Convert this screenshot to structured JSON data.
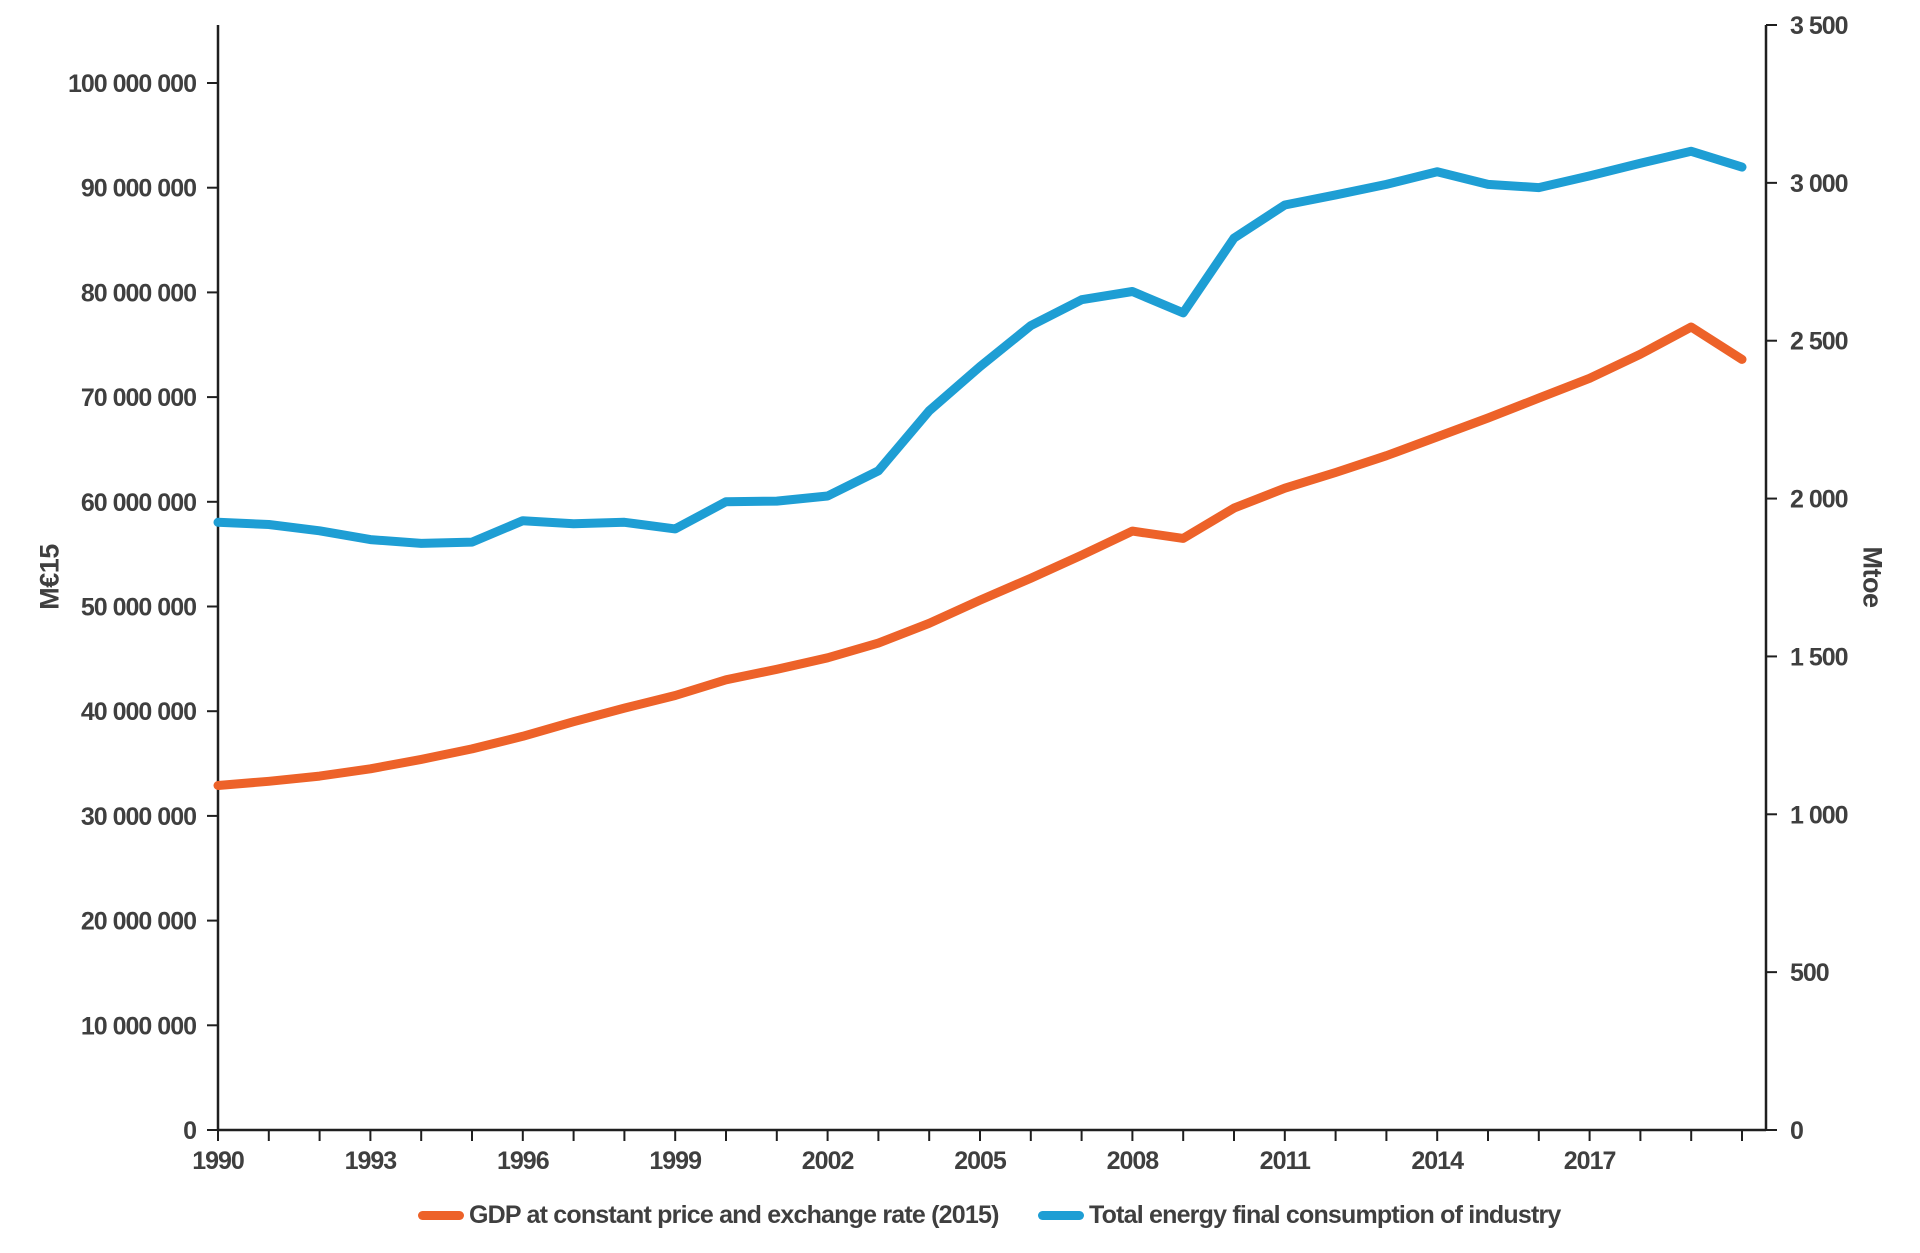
{
  "left_axis_title": "M€15",
  "right_axis_title": "Mtoe",
  "legend": {
    "gdp_label": "GDP  at constant price and exchange rate (2015)",
    "energy_label": "Total energy final consumption of industry"
  },
  "colors": {
    "gdp": "#ED6229",
    "energy": "#1E9ED4",
    "axis_line": "#1f1f1f",
    "tick_text": "#3f3f3f"
  },
  "chart_data": {
    "type": "line",
    "title": "",
    "x": [
      1990,
      1991,
      1992,
      1993,
      1994,
      1995,
      1996,
      1997,
      1998,
      1999,
      2000,
      2001,
      2002,
      2003,
      2004,
      2005,
      2006,
      2007,
      2008,
      2009,
      2010,
      2011,
      2012,
      2013,
      2014,
      2015,
      2016,
      2017,
      2018,
      2019,
      2020
    ],
    "x_tick_years": [
      1990,
      1993,
      1996,
      1999,
      2002,
      2005,
      2008,
      2011,
      2014,
      2017
    ],
    "x_tick_labels": [
      "1990",
      "1993",
      "1996",
      "1999",
      "2002",
      "2005",
      "2008",
      "2011",
      "2014",
      "2017"
    ],
    "series": [
      {
        "name": "GDP  at constant price and exchange rate (2015)",
        "axis": "left",
        "color_key": "gdp",
        "values": [
          32900000,
          33300000,
          33800000,
          34500000,
          35400000,
          36400000,
          37600000,
          39000000,
          40300000,
          41500000,
          43000000,
          44000000,
          45100000,
          46500000,
          48400000,
          50600000,
          52700000,
          54900000,
          57200000,
          56500000,
          59400000,
          61300000,
          62800000,
          64400000,
          66200000,
          68000000,
          69900000,
          71800000,
          74100000,
          76700000,
          73600000
        ]
      },
      {
        "name": "Total energy final consumption of industry",
        "axis": "right",
        "color_key": "energy",
        "values": [
          1925,
          1918,
          1898,
          1870,
          1858,
          1862,
          1930,
          1920,
          1925,
          1904,
          1990,
          1992,
          2008,
          2088,
          2278,
          2418,
          2548,
          2630,
          2656,
          2588,
          2825,
          2930,
          2962,
          2995,
          3035,
          2995,
          2985,
          3022,
          3062,
          3100,
          3050
        ]
      }
    ],
    "left_axis": {
      "title": "M€15",
      "min": 0,
      "max": 100000000,
      "step": 10000000,
      "tick_labels": [
        "0",
        "10 000 000",
        "20 000 000",
        "30 000 000",
        "40 000 000",
        "50 000 000",
        "60 000 000",
        "70 000 000",
        "80 000 000",
        "90 000 000",
        "100 000 000"
      ]
    },
    "right_axis": {
      "title": "Mtoe",
      "min": 0,
      "max": 3500,
      "step": 500,
      "tick_labels": [
        "0",
        "500",
        "1 000",
        "1 500",
        "2 000",
        "2 500",
        "3 000",
        "3 500"
      ]
    },
    "legend_position": "bottom",
    "grid": false
  }
}
